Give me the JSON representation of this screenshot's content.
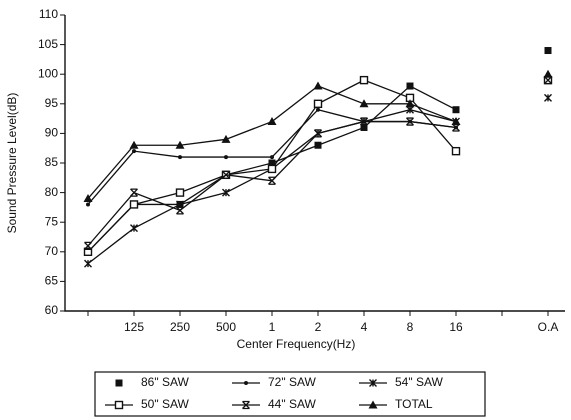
{
  "chart_data": {
    "type": "line",
    "x_label": "Center Frequency(Hz)",
    "y_label": "Sound Pressure Level(dB)",
    "categories": [
      null,
      "125",
      "250",
      "500",
      "1",
      "2",
      "4",
      "8",
      "16",
      null,
      "O.A"
    ],
    "ylim": [
      60,
      110
    ],
    "yticks": [
      60,
      65,
      70,
      75,
      80,
      85,
      90,
      95,
      100,
      105,
      110
    ],
    "grid": false,
    "legend": "bottom",
    "series": [
      {
        "name": "86\" SAW",
        "color": "#111111",
        "marker": "square-filled",
        "values": [
          70,
          78,
          78,
          83,
          85,
          88,
          91,
          98,
          94,
          null,
          104
        ]
      },
      {
        "name": "72\" SAW",
        "color": "#111111",
        "marker": "dot",
        "values": [
          78,
          87,
          86,
          86,
          86,
          94,
          92,
          92,
          91,
          null,
          100
        ]
      },
      {
        "name": "54\" SAW",
        "color": "#111111",
        "marker": "star",
        "values": [
          68,
          74,
          78,
          80,
          84,
          90,
          92,
          94,
          92,
          null,
          96
        ]
      },
      {
        "name": "50\" SAW",
        "color": "#111111",
        "marker": "square-open",
        "values": [
          70,
          78,
          80,
          83,
          84,
          95,
          99,
          96,
          87,
          null,
          99
        ]
      },
      {
        "name": "44\" SAW",
        "color": "#111111",
        "marker": "cross-bar",
        "values": [
          71,
          80,
          77,
          83,
          82,
          90,
          92,
          92,
          91,
          null,
          99
        ]
      },
      {
        "name": "TOTAL",
        "color": "#111111",
        "marker": "triangle",
        "values": [
          79,
          88,
          88,
          89,
          92,
          98,
          95,
          95,
          92,
          null,
          100
        ]
      }
    ]
  }
}
